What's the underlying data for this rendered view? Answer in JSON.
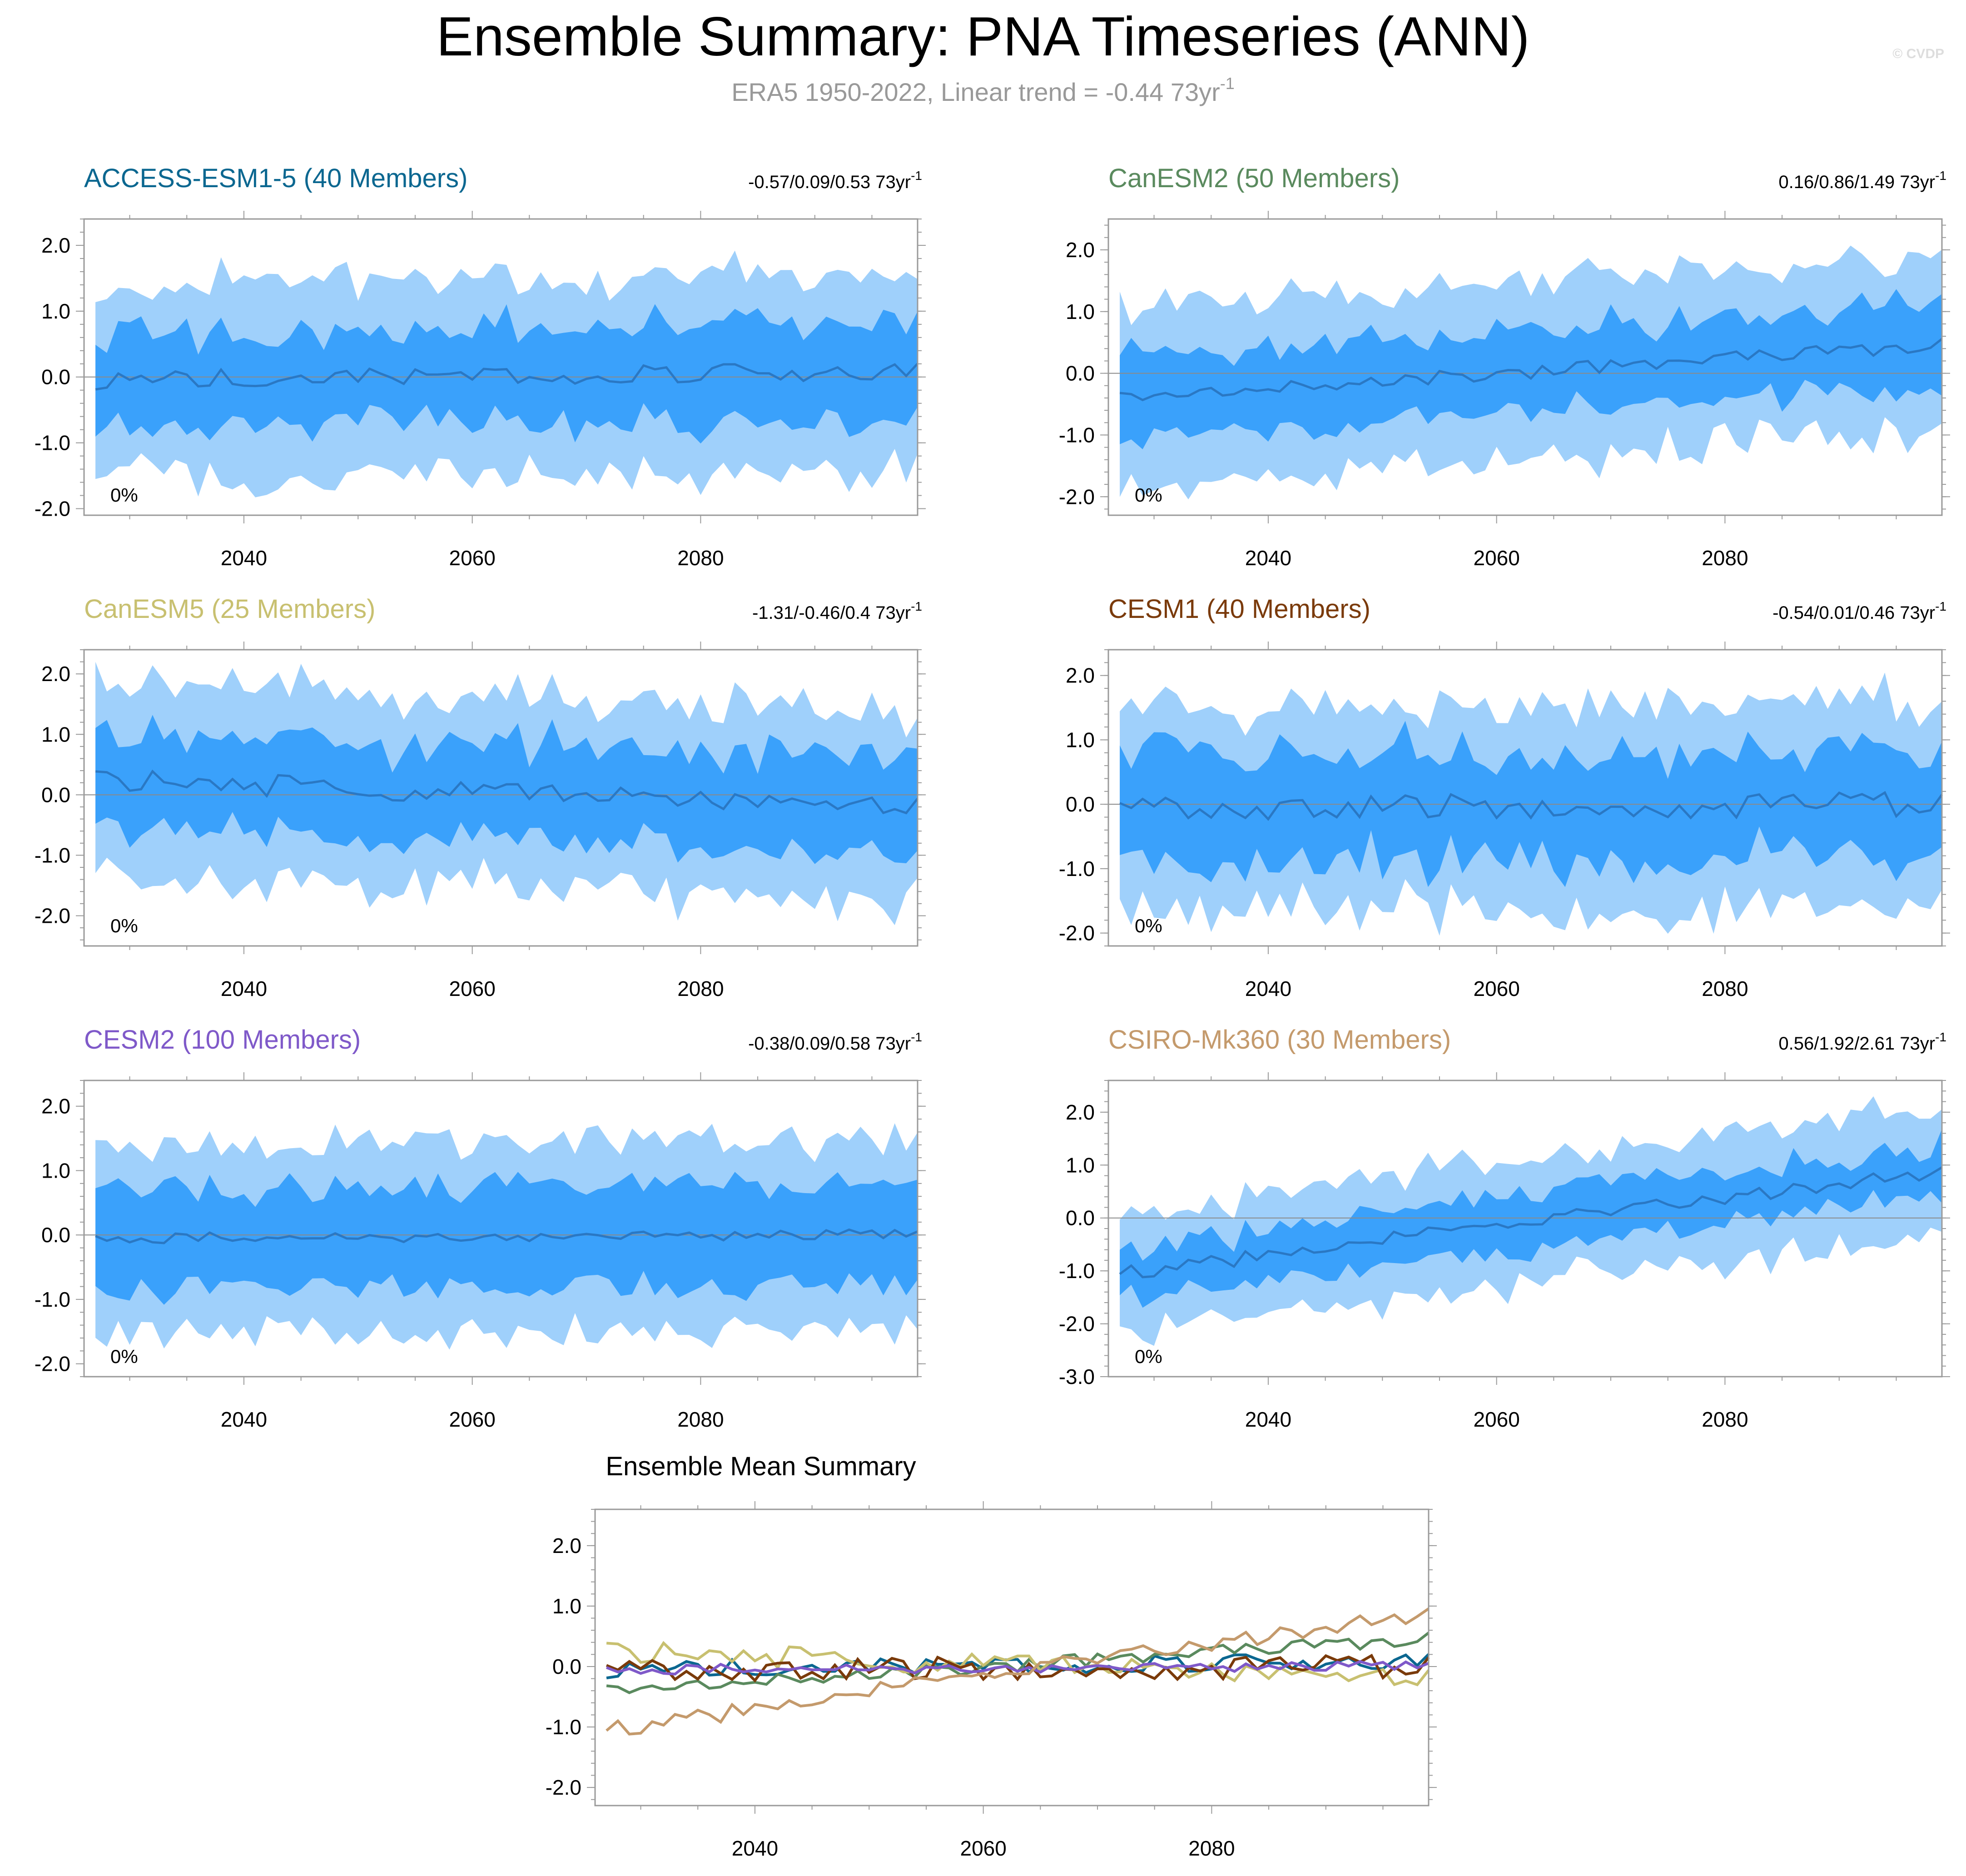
{
  "header": {
    "title": "Ensemble Summary: PNA Timeseries (ANN)",
    "subtitle": "ERA5 1950-2022, Linear trend = -0.44 73yr",
    "subtitle_sup": "-1",
    "watermark": "© CVDP"
  },
  "colors": {
    "band_outer": "#9fd0fb",
    "band_inner": "#3aa1fb",
    "mean_line": "#2a78c4",
    "zero_line": "#8a8a8a"
  },
  "chart_data": [
    {
      "id": "access",
      "type": "area",
      "title": "ACCESS-ESM1-5 (40 Members)",
      "title_color": "#0b6790",
      "trend": "-0.57/0.09/0.53 73yr",
      "trend_sup": "-1",
      "pct_label": "0%",
      "xlim": [
        2026,
        2099
      ],
      "ylim": [
        -2.1,
        2.4
      ],
      "yticks": [
        2.0,
        1.0,
        0.0,
        -1.0,
        -2.0
      ],
      "ytick_labels": [
        "2.0",
        "1.0",
        "0.0",
        "-1.0",
        "-2.0"
      ],
      "xticks": [
        2040,
        2060,
        2080
      ],
      "xtick_labels": [
        "2040",
        "2060",
        "2080"
      ],
      "x_start": 2027,
      "mean_base": -0.05,
      "mean_slope": 0.002,
      "mean_amp": 0.14,
      "inner_width": 0.72,
      "outer_width": 1.45,
      "noise_amp": 0.28,
      "seed": 3
    },
    {
      "id": "canesm2",
      "type": "area",
      "title": "CanESM2 (50 Members)",
      "title_color": "#5a8a5e",
      "trend": "0.16/0.86/1.49 73yr",
      "trend_sup": "-1",
      "pct_label": "0%",
      "xlim": [
        2026,
        2099
      ],
      "ylim": [
        -2.3,
        2.5
      ],
      "yticks": [
        2.0,
        1.0,
        0.0,
        -1.0,
        -2.0
      ],
      "ytick_labels": [
        "2.0",
        "1.0",
        "0.0",
        "-1.0",
        "-2.0"
      ],
      "xticks": [
        2040,
        2060,
        2080
      ],
      "xtick_labels": [
        "2040",
        "2060",
        "2080"
      ],
      "x_start": 2027,
      "mean_base": -0.42,
      "mean_slope": 0.0125,
      "mean_amp": 0.12,
      "inner_width": 0.68,
      "outer_width": 1.4,
      "noise_amp": 0.26,
      "seed": 11
    },
    {
      "id": "canesm5",
      "type": "area",
      "title": "CanESM5 (25 Members)",
      "title_color": "#c8c070",
      "trend": "-1.31/-0.46/0.4 73yr",
      "trend_sup": "-1",
      "pct_label": "0%",
      "xlim": [
        2026,
        2099
      ],
      "ylim": [
        -2.5,
        2.4
      ],
      "yticks": [
        2.0,
        1.0,
        0.0,
        -1.0,
        -2.0
      ],
      "ytick_labels": [
        "2.0",
        "1.0",
        "0.0",
        "-1.0",
        "-2.0"
      ],
      "xticks": [
        2040,
        2060,
        2080
      ],
      "xtick_labels": [
        "2040",
        "2060",
        "2080"
      ],
      "x_start": 2027,
      "mean_base": 0.25,
      "mean_slope": -0.0065,
      "mean_amp": 0.18,
      "inner_width": 0.78,
      "outer_width": 1.55,
      "noise_amp": 0.3,
      "seed": 7
    },
    {
      "id": "cesm1",
      "type": "area",
      "title": "CESM1 (40 Members)",
      "title_color": "#7a3a0a",
      "trend": "-0.54/0.01/0.46 73yr",
      "trend_sup": "-1",
      "pct_label": "0%",
      "xlim": [
        2026,
        2099
      ],
      "ylim": [
        -2.2,
        2.4
      ],
      "yticks": [
        2.0,
        1.0,
        0.0,
        -1.0,
        -2.0
      ],
      "ytick_labels": [
        "2.0",
        "1.0",
        "0.0",
        "-1.0",
        "-2.0"
      ],
      "xticks": [
        2040,
        2060,
        2080
      ],
      "xtick_labels": [
        "2040",
        "2060",
        "2080"
      ],
      "x_start": 2027,
      "mean_base": -0.05,
      "mean_slope": 0.0005,
      "mean_amp": 0.2,
      "inner_width": 0.82,
      "outer_width": 1.55,
      "noise_amp": 0.32,
      "seed": 19
    },
    {
      "id": "cesm2",
      "type": "area",
      "title": "CESM2 (100 Members)",
      "title_color": "#7f59c9",
      "trend": "-0.38/0.09/0.58 73yr",
      "trend_sup": "-1",
      "pct_label": "0%",
      "xlim": [
        2026,
        2099
      ],
      "ylim": [
        -2.2,
        2.4
      ],
      "yticks": [
        2.0,
        1.0,
        0.0,
        -1.0,
        -2.0
      ],
      "ytick_labels": [
        "2.0",
        "1.0",
        "0.0",
        "-1.0",
        "-2.0"
      ],
      "xticks": [
        2040,
        2060,
        2080
      ],
      "xtick_labels": [
        "2040",
        "2060",
        "2080"
      ],
      "x_start": 2027,
      "mean_base": -0.05,
      "mean_slope": 0.0008,
      "mean_amp": 0.08,
      "inner_width": 0.78,
      "outer_width": 1.45,
      "noise_amp": 0.14,
      "seed": 23
    },
    {
      "id": "csiro",
      "type": "area",
      "title": "CSIRO-Mk360 (30 Members)",
      "title_color": "#c49a6c",
      "trend": "0.56/1.92/2.61 73yr",
      "trend_sup": "-1",
      "pct_label": "0%",
      "xlim": [
        2026,
        2099
      ],
      "ylim": [
        -3.0,
        2.6
      ],
      "yticks": [
        2.0,
        1.0,
        0.0,
        -1.0,
        -2.0,
        -3.0
      ],
      "ytick_labels": [
        "2.0",
        "1.0",
        "0.0",
        "-1.0",
        "-2.0",
        "-3.0"
      ],
      "xticks": [
        2040,
        2060,
        2080
      ],
      "xtick_labels": [
        "2040",
        "2060",
        "2080"
      ],
      "x_start": 2027,
      "mean_base": -1.05,
      "mean_slope": 0.027,
      "mean_amp": 0.14,
      "inner_width": 0.5,
      "outer_width": 1.15,
      "noise_amp": 0.28,
      "seed": 31
    }
  ],
  "ensemble_mean": {
    "type": "line",
    "title": "Ensemble Mean Summary",
    "xlim": [
      2026,
      2099
    ],
    "ylim": [
      -2.3,
      2.6
    ],
    "yticks": [
      2.0,
      1.0,
      0.0,
      -1.0,
      -2.0
    ],
    "ytick_labels": [
      "2.0",
      "1.0",
      "0.0",
      "-1.0",
      "-2.0"
    ],
    "xticks": [
      2040,
      2060,
      2080
    ],
    "xtick_labels": [
      "2040",
      "2060",
      "2080"
    ],
    "series_ids": [
      "access",
      "canesm2",
      "canesm5",
      "cesm1",
      "cesm2",
      "csiro"
    ]
  }
}
